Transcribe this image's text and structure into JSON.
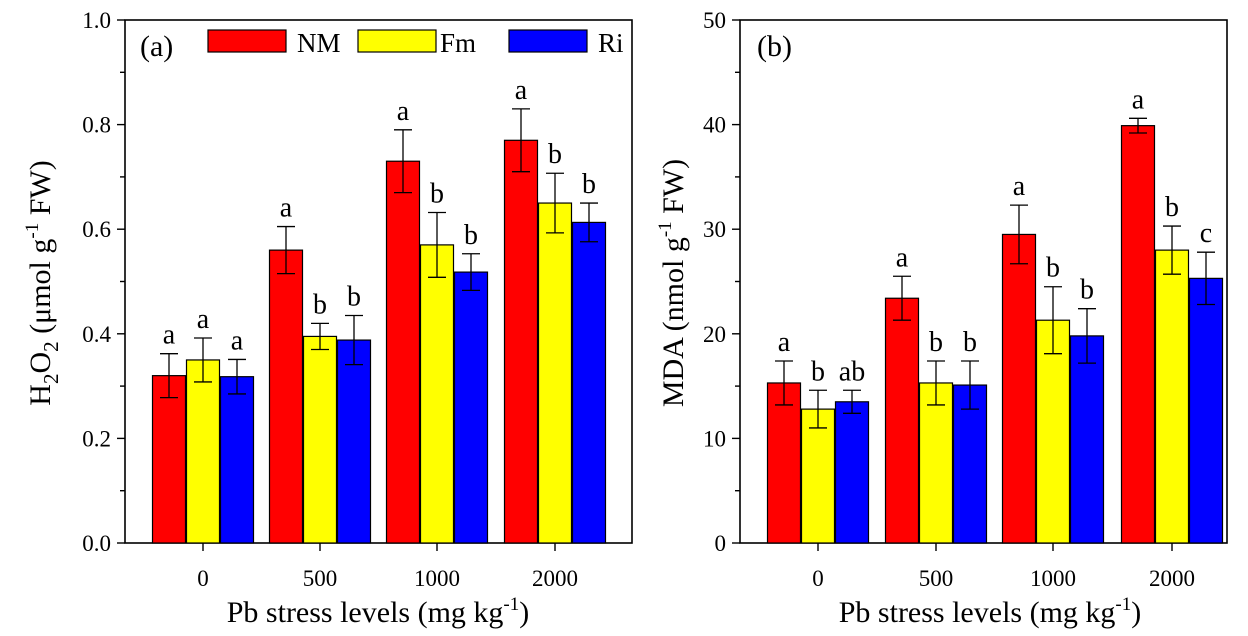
{
  "colors": {
    "NM": "#ff0000",
    "Fm": "#ffff00",
    "Ri": "#0000ff"
  },
  "legend": [
    "NM",
    "Fm",
    "Ri"
  ],
  "chart_data": [
    {
      "type": "bar",
      "panel": "(a)",
      "categories": [
        "0",
        "500",
        "1000",
        "2000"
      ],
      "xlabel": {
        "main": "Pb stress levels (mg kg",
        "sup": "-1",
        "tail": ")"
      },
      "ylabel": {
        "p1": "H",
        "s1": "2",
        "p2": "O",
        "s2": "2",
        "p3": " (μmol g",
        "sup": "-1",
        "p4": " FW)"
      },
      "ylim": [
        0,
        1.0
      ],
      "yticks": [
        "0.0",
        "0.2",
        "0.4",
        "0.6",
        "0.8",
        "1.0"
      ],
      "yticks_values": [
        0,
        0.2,
        0.4,
        0.6,
        0.8,
        1.0
      ],
      "series": [
        {
          "name": "NM",
          "values": [
            0.32,
            0.56,
            0.73,
            0.77
          ],
          "errors": [
            0.042,
            0.045,
            0.06,
            0.06
          ],
          "labels": [
            "a",
            "a",
            "a",
            "a"
          ]
        },
        {
          "name": "Fm",
          "values": [
            0.35,
            0.395,
            0.57,
            0.65
          ],
          "errors": [
            0.042,
            0.025,
            0.062,
            0.057
          ],
          "labels": [
            "a",
            "b",
            "b",
            "b"
          ]
        },
        {
          "name": "Ri",
          "values": [
            0.318,
            0.388,
            0.518,
            0.613
          ],
          "errors": [
            0.033,
            0.047,
            0.035,
            0.037
          ],
          "labels": [
            "a",
            "b",
            "b",
            "b"
          ]
        }
      ]
    },
    {
      "type": "bar",
      "panel": "(b)",
      "categories": [
        "0",
        "500",
        "1000",
        "2000"
      ],
      "xlabel": {
        "main": "Pb stress levels (mg kg",
        "sup": "-1",
        "tail": ")"
      },
      "ylabel": {
        "p1": "MDA (nmol g",
        "sup": "-1",
        "p2": " FW)"
      },
      "ylim": [
        0,
        50
      ],
      "yticks": [
        "0",
        "10",
        "20",
        "30",
        "40",
        "50"
      ],
      "yticks_values": [
        0,
        10,
        20,
        30,
        40,
        50
      ],
      "series": [
        {
          "name": "NM",
          "values": [
            15.3,
            23.4,
            29.5,
            39.9
          ],
          "errors": [
            2.1,
            2.1,
            2.8,
            0.7
          ],
          "labels": [
            "a",
            "a",
            "a",
            "a"
          ]
        },
        {
          "name": "Fm",
          "values": [
            12.8,
            15.3,
            21.3,
            28.0
          ],
          "errors": [
            1.8,
            2.1,
            3.2,
            2.3
          ],
          "labels": [
            "b",
            "b",
            "b",
            "b"
          ]
        },
        {
          "name": "Ri",
          "values": [
            13.5,
            15.1,
            19.8,
            25.3
          ],
          "errors": [
            1.1,
            2.3,
            2.6,
            2.5
          ],
          "labels": [
            "ab",
            "b",
            "b",
            "c"
          ]
        }
      ]
    }
  ]
}
